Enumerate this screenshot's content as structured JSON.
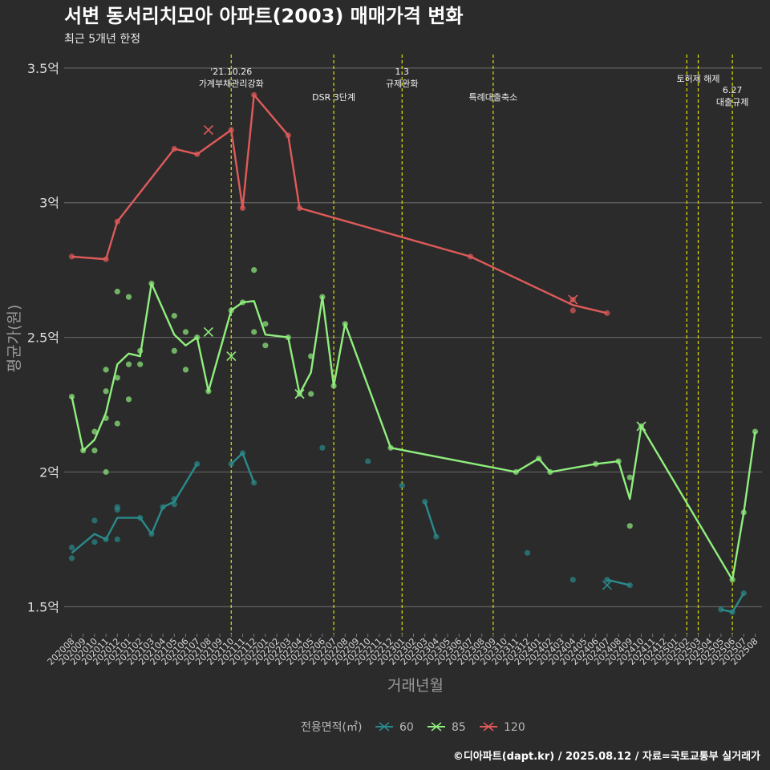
{
  "chart_data": {
    "type": "line",
    "title": "서변 동서리치모아 아파트(2003) 매매가격 변화",
    "subtitle": "최근 5개년 한정",
    "xlabel": "거래년월",
    "ylabel": "평균가(원)",
    "source": "©디아파트(dapt.kr) / 2025.08.12 / 자료=국토교통부 실거래가",
    "ylim": [
      1.4,
      3.55
    ],
    "yticks": [
      {
        "value": 1.5,
        "label": "1.5억"
      },
      {
        "value": 2.0,
        "label": "2억"
      },
      {
        "value": 2.5,
        "label": "2.5억"
      },
      {
        "value": 3.0,
        "label": "3억"
      },
      {
        "value": 3.5,
        "label": "3.5억"
      }
    ],
    "xlim": [
      "2020-08",
      "2025-08"
    ],
    "xticks": [
      "202008",
      "202009",
      "202010",
      "202011",
      "202012",
      "202101",
      "202102",
      "202103",
      "202104",
      "202105",
      "202106",
      "202107",
      "202108",
      "202109",
      "202110",
      "202111",
      "202112",
      "202201",
      "202202",
      "202203",
      "202204",
      "202205",
      "202206",
      "202207",
      "202208",
      "202209",
      "202210",
      "202211",
      "202212",
      "202301",
      "202302",
      "202303",
      "202304",
      "202305",
      "202306",
      "202307",
      "202308",
      "202309",
      "202310",
      "202311",
      "202312",
      "202401",
      "202402",
      "202403",
      "202404",
      "202405",
      "202406",
      "202407",
      "202408",
      "202409",
      "202410",
      "202411",
      "202412",
      "202501",
      "202502",
      "202503",
      "202504",
      "202505",
      "202506",
      "202507",
      "202508"
    ],
    "grid": true,
    "legend_position": "bottom",
    "legend_title": "전용면적(㎡)",
    "events": [
      {
        "date": "2021-10",
        "label": "'21.10.26\n가계부채관리강화",
        "level": 1
      },
      {
        "date": "2022-07",
        "label": "DSR 3단계",
        "level": 2
      },
      {
        "date": "2023-01",
        "label": "1.3\n규제완화",
        "level": 1
      },
      {
        "date": "2023-09",
        "label": "특례대출축소",
        "level": 2
      },
      {
        "date": "2025-02",
        "label": "",
        "level": 0
      },
      {
        "date": "2025-03",
        "label": "토허제 해제",
        "level": 1
      },
      {
        "date": "2025-06",
        "label": "6.27\n대출규제",
        "level": 3
      }
    ],
    "series": [
      {
        "name": "60",
        "color": "#2a8a8c",
        "lines": [
          [
            [
              "2020-08",
              1.7
            ],
            [
              "2020-10",
              1.77
            ],
            [
              "2020-11",
              1.75
            ],
            [
              "2020-12",
              1.83
            ],
            [
              "2021-02",
              1.83
            ],
            [
              "2021-03",
              1.77
            ],
            [
              "2021-04",
              1.87
            ],
            [
              "2021-05",
              1.89
            ],
            [
              "2021-07",
              2.03
            ]
          ],
          [
            [
              "2021-10",
              2.03
            ],
            [
              "2021-11",
              2.07
            ],
            [
              "2021-12",
              1.96
            ]
          ],
          [
            [
              "2023-03",
              1.89
            ],
            [
              "2023-04",
              1.76
            ]
          ],
          [
            [
              "2024-07",
              1.6
            ],
            [
              "2024-09",
              1.58
            ]
          ],
          [
            [
              "2025-05",
              1.49
            ],
            [
              "2025-06",
              1.48
            ],
            [
              "2025-07",
              1.55
            ]
          ]
        ],
        "points": [
          [
            "2020-08",
            1.72
          ],
          [
            "2020-08",
            1.68
          ],
          [
            "2020-10",
            1.82
          ],
          [
            "2020-10",
            1.74
          ],
          [
            "2020-11",
            1.75
          ],
          [
            "2020-12",
            1.87
          ],
          [
            "2020-12",
            1.86
          ],
          [
            "2020-12",
            1.75
          ],
          [
            "2021-02",
            1.83
          ],
          [
            "2021-03",
            1.77
          ],
          [
            "2021-04",
            1.87
          ],
          [
            "2021-05",
            1.9
          ],
          [
            "2021-05",
            1.88
          ],
          [
            "2021-07",
            2.03
          ],
          [
            "2021-10",
            2.03
          ],
          [
            "2021-11",
            2.07
          ],
          [
            "2021-12",
            1.96
          ],
          [
            "2022-06",
            2.09
          ],
          [
            "2022-10",
            2.04
          ],
          [
            "2023-01",
            1.95
          ],
          [
            "2023-03",
            1.89
          ],
          [
            "2023-04",
            1.76
          ],
          [
            "2023-12",
            1.7
          ],
          [
            "2024-04",
            1.6
          ],
          [
            "2024-07",
            1.6
          ],
          [
            "2024-09",
            1.58
          ],
          [
            "2025-05",
            1.49
          ],
          [
            "2025-06",
            1.48
          ],
          [
            "2025-07",
            1.55
          ]
        ],
        "cancelled": [
          [
            "2024-07",
            1.58
          ]
        ]
      },
      {
        "name": "85",
        "color": "#90ee7e",
        "lines": [
          [
            [
              "2020-08",
              2.28
            ],
            [
              "2020-09",
              2.08
            ],
            [
              "2020-10",
              2.12
            ],
            [
              "2020-11",
              2.22
            ],
            [
              "2020-12",
              2.4
            ],
            [
              "2021-01",
              2.44
            ],
            [
              "2021-02",
              2.43
            ],
            [
              "2021-03",
              2.7
            ],
            [
              "2021-05",
              2.51
            ],
            [
              "2021-06",
              2.47
            ],
            [
              "2021-07",
              2.5
            ],
            [
              "2021-08",
              2.3
            ],
            [
              "2021-10",
              2.6
            ],
            [
              "2021-11",
              2.63
            ],
            [
              "2021-12",
              2.635
            ],
            [
              "2022-01",
              2.51
            ],
            [
              "2022-03",
              2.5
            ],
            [
              "2022-04",
              2.29
            ],
            [
              "2022-05",
              2.37
            ],
            [
              "2022-06",
              2.65
            ],
            [
              "2022-07",
              2.32
            ],
            [
              "2022-08",
              2.55
            ],
            [
              "2022-12",
              2.09
            ],
            [
              "2023-11",
              2.0
            ],
            [
              "2024-01",
              2.05
            ],
            [
              "2024-02",
              2.0
            ],
            [
              "2024-06",
              2.03
            ],
            [
              "2024-08",
              2.04
            ],
            [
              "2024-09",
              1.9
            ],
            [
              "2024-10",
              2.17
            ],
            [
              "2025-06",
              1.6
            ],
            [
              "2025-07",
              1.85
            ],
            [
              "2025-08",
              2.15
            ]
          ]
        ],
        "points": [
          [
            "2020-08",
            2.28
          ],
          [
            "2020-09",
            2.08
          ],
          [
            "2020-10",
            2.15
          ],
          [
            "2020-10",
            2.08
          ],
          [
            "2020-11",
            2.38
          ],
          [
            "2020-11",
            2.3
          ],
          [
            "2020-11",
            2.2
          ],
          [
            "2020-11",
            2.0
          ],
          [
            "2020-12",
            2.67
          ],
          [
            "2020-12",
            2.35
          ],
          [
            "2020-12",
            2.18
          ],
          [
            "2021-01",
            2.65
          ],
          [
            "2021-01",
            2.4
          ],
          [
            "2021-01",
            2.27
          ],
          [
            "2021-02",
            2.45
          ],
          [
            "2021-02",
            2.4
          ],
          [
            "2021-03",
            2.7
          ],
          [
            "2021-05",
            2.58
          ],
          [
            "2021-05",
            2.45
          ],
          [
            "2021-06",
            2.52
          ],
          [
            "2021-06",
            2.38
          ],
          [
            "2021-07",
            2.5
          ],
          [
            "2021-08",
            2.3
          ],
          [
            "2021-10",
            2.6
          ],
          [
            "2021-11",
            2.63
          ],
          [
            "2021-12",
            2.75
          ],
          [
            "2021-12",
            2.52
          ],
          [
            "2022-01",
            2.55
          ],
          [
            "2022-01",
            2.47
          ],
          [
            "2022-03",
            2.5
          ],
          [
            "2022-04",
            2.29
          ],
          [
            "2022-05",
            2.43
          ],
          [
            "2022-05",
            2.29
          ],
          [
            "2022-06",
            2.65
          ],
          [
            "2022-07",
            2.32
          ],
          [
            "2022-08",
            2.55
          ],
          [
            "2022-12",
            2.09
          ],
          [
            "2023-11",
            2.0
          ],
          [
            "2024-01",
            2.05
          ],
          [
            "2024-02",
            2.0
          ],
          [
            "2024-06",
            2.03
          ],
          [
            "2024-08",
            2.04
          ],
          [
            "2024-09",
            1.98
          ],
          [
            "2024-09",
            1.8
          ],
          [
            "2024-10",
            2.17
          ],
          [
            "2025-06",
            1.6
          ],
          [
            "2025-07",
            1.85
          ],
          [
            "2025-08",
            2.15
          ]
        ],
        "cancelled": [
          [
            "2021-08",
            2.52
          ],
          [
            "2021-10",
            2.43
          ],
          [
            "2022-04",
            2.29
          ],
          [
            "2024-10",
            2.17
          ]
        ]
      },
      {
        "name": "120",
        "color": "#e05a5a",
        "lines": [
          [
            [
              "2020-08",
              2.8
            ],
            [
              "2020-11",
              2.79
            ],
            [
              "2020-12",
              2.93
            ],
            [
              "2021-05",
              3.2
            ],
            [
              "2021-07",
              3.18
            ],
            [
              "2021-10",
              3.27
            ],
            [
              "2021-11",
              2.98
            ],
            [
              "2021-12",
              3.4
            ],
            [
              "2022-03",
              3.25
            ],
            [
              "2022-04",
              2.98
            ],
            [
              "2023-07",
              2.8
            ],
            [
              "2024-04",
              2.62
            ],
            [
              "2024-07",
              2.59
            ]
          ]
        ],
        "points": [
          [
            "2020-08",
            2.8
          ],
          [
            "2020-11",
            2.79
          ],
          [
            "2020-12",
            2.93
          ],
          [
            "2021-05",
            3.2
          ],
          [
            "2021-07",
            3.18
          ],
          [
            "2021-10",
            3.27
          ],
          [
            "2021-11",
            2.98
          ],
          [
            "2021-12",
            3.4
          ],
          [
            "2022-03",
            3.25
          ],
          [
            "2022-04",
            2.98
          ],
          [
            "2023-07",
            2.8
          ],
          [
            "2024-04",
            2.64
          ],
          [
            "2024-04",
            2.6
          ],
          [
            "2024-07",
            2.59
          ]
        ],
        "cancelled": [
          [
            "2021-08",
            3.27
          ],
          [
            "2024-04",
            2.64
          ]
        ]
      }
    ]
  }
}
